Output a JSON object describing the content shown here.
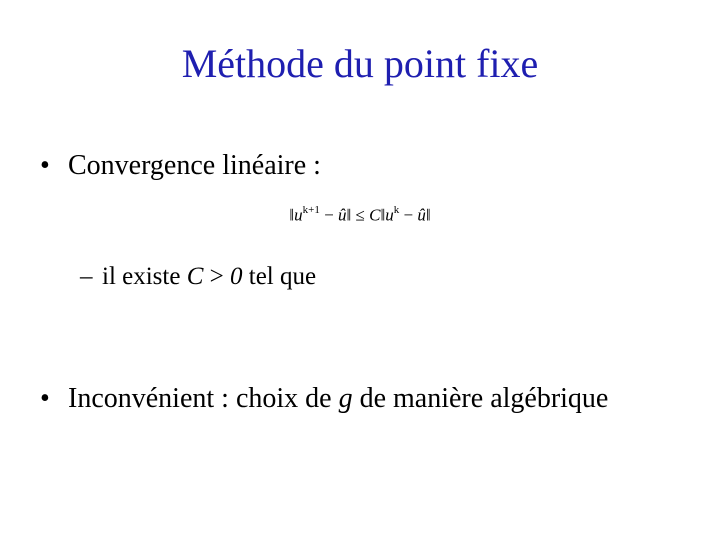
{
  "slide": {
    "title": "Méthode du point fixe",
    "title_color": "#1f1fb0",
    "body_color": "#000000",
    "background": "#ffffff",
    "bullets": {
      "b1": {
        "marker": "•",
        "text": "Convergence linéaire :",
        "sub": {
          "marker": "–",
          "pre": "il existe ",
          "var": "C",
          "post": " > ",
          "zero": "0",
          "tail": " tel que"
        },
        "formula": {
          "lnorm_open": "‖",
          "u": "u",
          "k1": "k+1",
          "minus": " − ",
          "uhat": "û",
          "lnorm_close": "‖",
          "leq": " ≤ ",
          "C": "C",
          "rnorm_open": "‖",
          "u2": "u",
          "k": "k",
          "minus2": " − ",
          "uhat2": "û",
          "rnorm_close": "‖"
        }
      },
      "b2": {
        "marker": "•",
        "pre": "Inconvénient : choix de ",
        "var": "g",
        "post": " de manière algébrique"
      }
    }
  }
}
